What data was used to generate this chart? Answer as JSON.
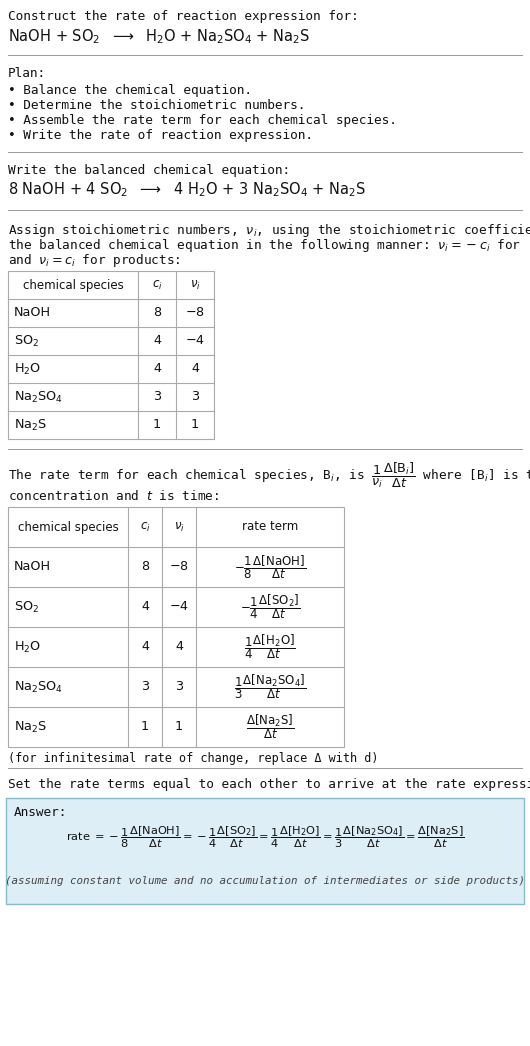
{
  "bg_color": "#ffffff",
  "white": "#ffffff",
  "light_blue_bg": "#ddeef6",
  "text_color": "#111111",
  "table_border": "#aaaaaa",
  "title_text": "Construct the rate of reaction expression for:",
  "reaction_unbalanced": "NaOH + SO$_2$  $\\longrightarrow$  H$_2$O + Na$_2$SO$_4$ + Na$_2$S",
  "plan_header": "Plan:",
  "plan_items": [
    "• Balance the chemical equation.",
    "• Determine the stoichiometric numbers.",
    "• Assemble the rate term for each chemical species.",
    "• Write the rate of reaction expression."
  ],
  "balanced_header": "Write the balanced chemical equation:",
  "balanced_eq": "8 NaOH + 4 SO$_2$  $\\longrightarrow$  4 H$_2$O + 3 Na$_2$SO$_4$ + Na$_2$S",
  "stoich_intro_line1": "Assign stoichiometric numbers, $\\nu_i$, using the stoichiometric coefficients, $c_i$, from",
  "stoich_intro_line2": "the balanced chemical equation in the following manner: $\\nu_i = -c_i$ for reactants",
  "stoich_intro_line3": "and $\\nu_i = c_i$ for products:",
  "table1_headers": [
    "chemical species",
    "$c_i$",
    "$\\nu_i$"
  ],
  "table1_rows": [
    [
      "NaOH",
      "8",
      "$-8$"
    ],
    [
      "SO$_2$",
      "4",
      "$-4$"
    ],
    [
      "H$_2$O",
      "4",
      "4"
    ],
    [
      "Na$_2$SO$_4$",
      "3",
      "3"
    ],
    [
      "Na$_2$S",
      "1",
      "1"
    ]
  ],
  "rate_intro_line1": "The rate term for each chemical species, B$_i$, is $\\dfrac{1}{\\nu_i}\\dfrac{\\Delta[\\mathrm{B}_i]}{\\Delta t}$ where [B$_i$] is the amount",
  "rate_intro_line2": "concentration and $t$ is time:",
  "table2_headers": [
    "chemical species",
    "$c_i$",
    "$\\nu_i$",
    "rate term"
  ],
  "table2_rows": [
    [
      "NaOH",
      "8",
      "$-8$",
      "$-\\dfrac{1}{8}\\dfrac{\\Delta[\\mathrm{NaOH}]}{\\Delta t}$"
    ],
    [
      "SO$_2$",
      "4",
      "$-4$",
      "$-\\dfrac{1}{4}\\dfrac{\\Delta[\\mathrm{SO_2}]}{\\Delta t}$"
    ],
    [
      "H$_2$O",
      "4",
      "4",
      "$\\dfrac{1}{4}\\dfrac{\\Delta[\\mathrm{H_2O}]}{\\Delta t}$"
    ],
    [
      "Na$_2$SO$_4$",
      "3",
      "3",
      "$\\dfrac{1}{3}\\dfrac{\\Delta[\\mathrm{Na_2SO_4}]}{\\Delta t}$"
    ],
    [
      "Na$_2$S",
      "1",
      "1",
      "$\\dfrac{\\Delta[\\mathrm{Na_2S}]}{\\Delta t}$"
    ]
  ],
  "infinitesimal_note": "(for infinitesimal rate of change, replace Δ with d)",
  "set_rate_text": "Set the rate terms equal to each other to arrive at the rate expression:",
  "answer_label": "Answer:",
  "rate_expression": "rate $= -\\dfrac{1}{8}\\dfrac{\\Delta[\\mathrm{NaOH}]}{\\Delta t} = -\\dfrac{1}{4}\\dfrac{\\Delta[\\mathrm{SO_2}]}{\\Delta t} = \\dfrac{1}{4}\\dfrac{\\Delta[\\mathrm{H_2O}]}{\\Delta t} = \\dfrac{1}{3}\\dfrac{\\Delta[\\mathrm{Na_2SO_4}]}{\\Delta t} = \\dfrac{\\Delta[\\mathrm{Na_2S}]}{\\Delta t}$",
  "assuming_note": "(assuming constant volume and no accumulation of intermediates or side products)"
}
